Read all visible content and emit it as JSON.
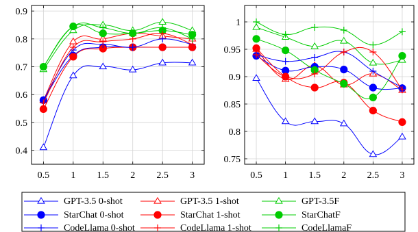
{
  "legend": {
    "entries": [
      {
        "label": "GPT-3.5 0-shot",
        "color": "#0000ff",
        "marker": "triangle"
      },
      {
        "label": "GPT-3.5 1-shot",
        "color": "#ff0000",
        "marker": "triangle"
      },
      {
        "label": "GPT-3.5F",
        "color": "#00cc00",
        "marker": "triangle"
      },
      {
        "label": "StarChat 0-shot",
        "color": "#0000ff",
        "marker": "circle"
      },
      {
        "label": "StarChat 1-shot",
        "color": "#ff0000",
        "marker": "circle"
      },
      {
        "label": "StarChatF",
        "color": "#00cc00",
        "marker": "circle"
      },
      {
        "label": "CodeLlama 0-shot",
        "color": "#0000ff",
        "marker": "plus"
      },
      {
        "label": "CodeLlama 1-shot",
        "color": "#ff0000",
        "marker": "plus"
      },
      {
        "label": "CodeLlamaF",
        "color": "#00cc00",
        "marker": "plus"
      }
    ]
  },
  "chart_data": [
    {
      "type": "line",
      "x": [
        0.5,
        1,
        1.5,
        2,
        2.5,
        3
      ],
      "xticks": [
        "0.5",
        "1",
        "1.5",
        "2",
        "2.5",
        "3"
      ],
      "ylim": [
        0.35,
        0.92
      ],
      "yticks": [
        "0.4",
        "0.5",
        "0.6",
        "0.7",
        "0.8",
        "0.9"
      ],
      "ytick_values": [
        0.4,
        0.5,
        0.6,
        0.7,
        0.8,
        0.9
      ],
      "grid": true,
      "series": [
        {
          "name": "GPT-3.5 0-shot",
          "color": "#0000ff",
          "marker": "triangle",
          "values": [
            0.41,
            0.668,
            0.7,
            0.689,
            0.714,
            0.714
          ]
        },
        {
          "name": "GPT-3.5 1-shot",
          "color": "#ff0000",
          "marker": "triangle",
          "values": [
            0.58,
            0.79,
            0.8,
            0.82,
            0.81,
            0.8
          ]
        },
        {
          "name": "GPT-3.5F",
          "color": "#00cc00",
          "marker": "triangle",
          "values": [
            0.69,
            0.83,
            0.85,
            0.83,
            0.86,
            0.83
          ]
        },
        {
          "name": "StarChat 0-shot",
          "color": "#0000ff",
          "marker": "circle",
          "values": [
            0.58,
            0.74,
            0.77,
            0.77,
            0.77,
            0.77
          ]
        },
        {
          "name": "StarChat 1-shot",
          "color": "#ff0000",
          "marker": "circle",
          "values": [
            0.548,
            0.736,
            0.765,
            0.77,
            0.77,
            0.77
          ]
        },
        {
          "name": "StarChatF",
          "color": "#00cc00",
          "marker": "circle",
          "values": [
            0.7,
            0.845,
            0.82,
            0.82,
            0.83,
            0.815
          ]
        },
        {
          "name": "CodeLlama 0-shot",
          "color": "#0000ff",
          "marker": "plus",
          "values": [
            0.58,
            0.76,
            0.78,
            0.77,
            0.8,
            0.78
          ]
        },
        {
          "name": "CodeLlama 1-shot",
          "color": "#ff0000",
          "marker": "plus",
          "values": [
            0.57,
            0.77,
            0.79,
            0.8,
            0.82,
            0.78
          ]
        },
        {
          "name": "CodeLlamaF",
          "color": "#00cc00",
          "marker": "plus",
          "values": [
            0.7,
            0.845,
            0.84,
            0.82,
            0.84,
            0.8
          ]
        }
      ]
    },
    {
      "type": "line",
      "x": [
        0.5,
        1,
        1.5,
        2,
        2.5,
        3
      ],
      "xticks": [
        "0.5",
        "1",
        "1.5",
        "2",
        "2.5",
        "3"
      ],
      "ylim": [
        0.74,
        1.03
      ],
      "yticks": [
        "0.75",
        "0.8",
        "0.85",
        "0.9",
        "0.95",
        "1"
      ],
      "ytick_values": [
        0.75,
        0.8,
        0.85,
        0.9,
        0.95,
        1.0
      ],
      "grid": true,
      "series": [
        {
          "name": "GPT-3.5 0-shot",
          "color": "#0000ff",
          "marker": "triangle",
          "values": [
            0.897,
            0.818,
            0.818,
            0.814,
            0.758,
            0.79
          ]
        },
        {
          "name": "GPT-3.5 1-shot",
          "color": "#ff0000",
          "marker": "triangle",
          "values": [
            0.95,
            0.895,
            0.92,
            0.885,
            0.905,
            0.875
          ]
        },
        {
          "name": "GPT-3.5F",
          "color": "#00cc00",
          "marker": "triangle",
          "values": [
            0.99,
            0.972,
            0.955,
            0.965,
            0.925,
            0.93
          ]
        },
        {
          "name": "StarChat 0-shot",
          "color": "#0000ff",
          "marker": "circle",
          "values": [
            0.938,
            0.911,
            0.918,
            0.913,
            0.88,
            0.879
          ]
        },
        {
          "name": "StarChat 1-shot",
          "color": "#ff0000",
          "marker": "circle",
          "values": [
            0.952,
            0.9,
            0.88,
            0.889,
            0.838,
            0.817
          ]
        },
        {
          "name": "StarChatF",
          "color": "#00cc00",
          "marker": "circle",
          "values": [
            0.969,
            0.948,
            0.912,
            0.887,
            0.862,
            0.938
          ]
        },
        {
          "name": "CodeLlama 0-shot",
          "color": "#0000ff",
          "marker": "plus",
          "values": [
            0.94,
            0.928,
            0.935,
            0.945,
            0.91,
            0.88
          ]
        },
        {
          "name": "CodeLlama 1-shot",
          "color": "#ff0000",
          "marker": "plus",
          "values": [
            0.94,
            0.9,
            0.905,
            0.945,
            0.945,
            0.876
          ]
        },
        {
          "name": "CodeLlamaF",
          "color": "#00cc00",
          "marker": "plus",
          "values": [
            1.0,
            0.977,
            0.99,
            0.985,
            0.958,
            0.982
          ]
        }
      ]
    }
  ]
}
